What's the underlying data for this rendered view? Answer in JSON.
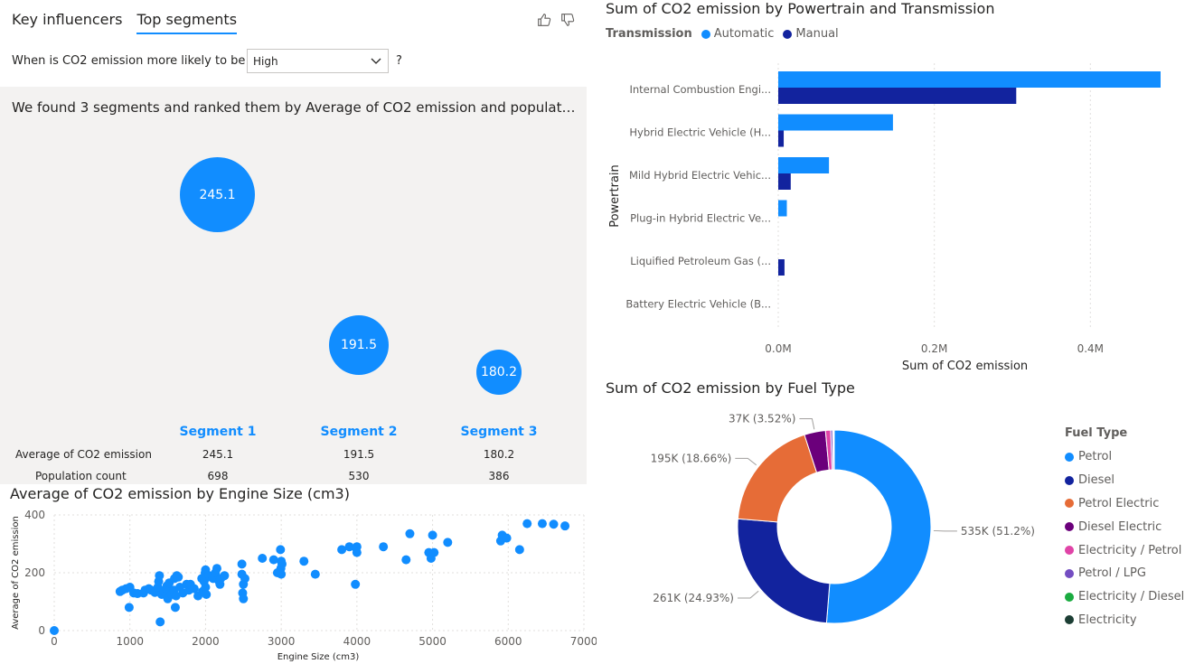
{
  "key_influencers": {
    "tabs": [
      {
        "label": "Key influencers",
        "active": false
      },
      {
        "label": "Top segments",
        "active": true
      }
    ],
    "question": "When is CO2 emission more likely to be",
    "selected_value": "High",
    "qmark": "?",
    "summary": "We found 3 segments and ranked them by Average of CO2 emission and populatio...",
    "row_labels": [
      "Average of CO2 emission",
      "Population count"
    ],
    "segments": [
      {
        "label": "Segment 1",
        "value": "245.1",
        "avg": "245.1",
        "count": "698"
      },
      {
        "label": "Segment 2",
        "value": "191.5",
        "avg": "191.5",
        "count": "530"
      },
      {
        "label": "Segment 3",
        "value": "180.2",
        "avg": "180.2",
        "count": "386"
      }
    ]
  },
  "colors": {
    "automatic": "#118DFF",
    "manual": "#12239E",
    "accent": "#118DFF",
    "panel_bg": "#F3F2F1"
  },
  "chart_data": [
    {
      "type": "bar",
      "orientation": "horizontal",
      "title": "Sum of CO2 emission by Powertrain and Transmission",
      "legend_title": "Transmission",
      "legend_position": "top-left",
      "xlabel": "Sum of CO2 emission",
      "ylabel": "Powertrain",
      "categories": [
        "Internal Combustion Engi...",
        "Hybrid Electric Vehicle (H...",
        "Mild Hybrid Electric Vehic...",
        "Plug-in Hybrid Electric Ve...",
        "Liquified Petroleum Gas (...",
        "Battery Electric Vehicle (B..."
      ],
      "series": [
        {
          "name": "Automatic",
          "color": "#118DFF",
          "values": [
            490000,
            147000,
            65000,
            11000,
            0,
            0
          ]
        },
        {
          "name": "Manual",
          "color": "#12239E",
          "values": [
            305000,
            7000,
            16000,
            0,
            8000,
            0
          ]
        }
      ],
      "xlim": [
        0,
        490000
      ],
      "xticks": [
        0,
        200000,
        400000
      ],
      "xtick_labels": [
        "0.0M",
        "0.2M",
        "0.4M"
      ],
      "grid": true
    },
    {
      "type": "pie",
      "variant": "donut",
      "title": "Sum of CO2 emission by Fuel Type",
      "legend_title": "Fuel Type",
      "legend_position": "right",
      "slices": [
        {
          "name": "Petrol",
          "value": 535000,
          "label": "535K (51.2%)",
          "color": "#118DFF"
        },
        {
          "name": "Diesel",
          "value": 261000,
          "label": "261K (24.93%)",
          "color": "#12239E"
        },
        {
          "name": "Petrol Electric",
          "value": 195000,
          "label": "195K (18.66%)",
          "color": "#E66C37"
        },
        {
          "name": "Diesel Electric",
          "value": 37000,
          "label": "37K (3.52%)",
          "color": "#6B007B"
        },
        {
          "name": "Electricity / Petrol",
          "value": 9000,
          "label": "",
          "color": "#E044A7"
        },
        {
          "name": "Petrol / LPG",
          "value": 3500,
          "label": "",
          "color": "#744EC2"
        },
        {
          "name": "Electricity / Diesel",
          "value": 1200,
          "label": "",
          "color": "#1AAB40"
        },
        {
          "name": "Electricity",
          "value": 1500,
          "label": "",
          "color": "#1C3E34"
        }
      ]
    },
    {
      "type": "scatter",
      "title": "Average of CO2 emission by Engine Size (cm3)",
      "xlabel": "Engine Size (cm3)",
      "ylabel": "Average of CO2 emission",
      "xlim": [
        0,
        7000
      ],
      "ylim": [
        0,
        400
      ],
      "xticks": [
        0,
        1000,
        2000,
        3000,
        4000,
        5000,
        6000,
        7000
      ],
      "yticks": [
        0,
        200,
        400
      ],
      "grid": true,
      "color": "#118DFF",
      "points": [
        [
          0,
          0
        ],
        [
          870,
          135
        ],
        [
          900,
          140
        ],
        [
          950,
          145
        ],
        [
          990,
          80
        ],
        [
          1000,
          150
        ],
        [
          1050,
          130
        ],
        [
          1100,
          128
        ],
        [
          1180,
          130
        ],
        [
          1200,
          140
        ],
        [
          1250,
          145
        ],
        [
          1280,
          140
        ],
        [
          1330,
          132
        ],
        [
          1370,
          150
        ],
        [
          1380,
          170
        ],
        [
          1390,
          190
        ],
        [
          1400,
          30
        ],
        [
          1420,
          125
        ],
        [
          1450,
          135
        ],
        [
          1480,
          145
        ],
        [
          1490,
          155
        ],
        [
          1500,
          110
        ],
        [
          1520,
          165
        ],
        [
          1550,
          125
        ],
        [
          1580,
          140
        ],
        [
          1590,
          180
        ],
        [
          1600,
          80
        ],
        [
          1610,
          120
        ],
        [
          1620,
          190
        ],
        [
          1640,
          185
        ],
        [
          1660,
          150
        ],
        [
          1700,
          130
        ],
        [
          1750,
          160
        ],
        [
          1780,
          140
        ],
        [
          1800,
          160
        ],
        [
          1850,
          145
        ],
        [
          1900,
          120
        ],
        [
          1950,
          180
        ],
        [
          1960,
          135
        ],
        [
          1980,
          170
        ],
        [
          1995,
          200
        ],
        [
          2000,
          150
        ],
        [
          2000,
          210
        ],
        [
          2010,
          125
        ],
        [
          2020,
          185
        ],
        [
          2050,
          190
        ],
        [
          2100,
          180
        ],
        [
          2130,
          200
        ],
        [
          2150,
          215
        ],
        [
          2180,
          170
        ],
        [
          2190,
          160
        ],
        [
          2200,
          180
        ],
        [
          2250,
          190
        ],
        [
          2480,
          230
        ],
        [
          2480,
          195
        ],
        [
          2490,
          130
        ],
        [
          2500,
          110
        ],
        [
          2500,
          160
        ],
        [
          2520,
          180
        ],
        [
          2750,
          250
        ],
        [
          2900,
          245
        ],
        [
          2950,
          200
        ],
        [
          2990,
          280
        ],
        [
          2995,
          215
        ],
        [
          3000,
          240
        ],
        [
          3000,
          195
        ],
        [
          3010,
          230
        ],
        [
          3300,
          240
        ],
        [
          3450,
          195
        ],
        [
          3800,
          280
        ],
        [
          3900,
          290
        ],
        [
          3980,
          160
        ],
        [
          3990,
          285
        ],
        [
          4000,
          290
        ],
        [
          4000,
          270
        ],
        [
          4350,
          290
        ],
        [
          4650,
          245
        ],
        [
          4700,
          335
        ],
        [
          4950,
          270
        ],
        [
          4980,
          250
        ],
        [
          5000,
          330
        ],
        [
          5020,
          270
        ],
        [
          5200,
          305
        ],
        [
          5900,
          310
        ],
        [
          5920,
          330
        ],
        [
          5980,
          320
        ],
        [
          6150,
          280
        ],
        [
          6250,
          370
        ],
        [
          6450,
          370
        ],
        [
          6600,
          368
        ],
        [
          6750,
          362
        ]
      ]
    }
  ]
}
